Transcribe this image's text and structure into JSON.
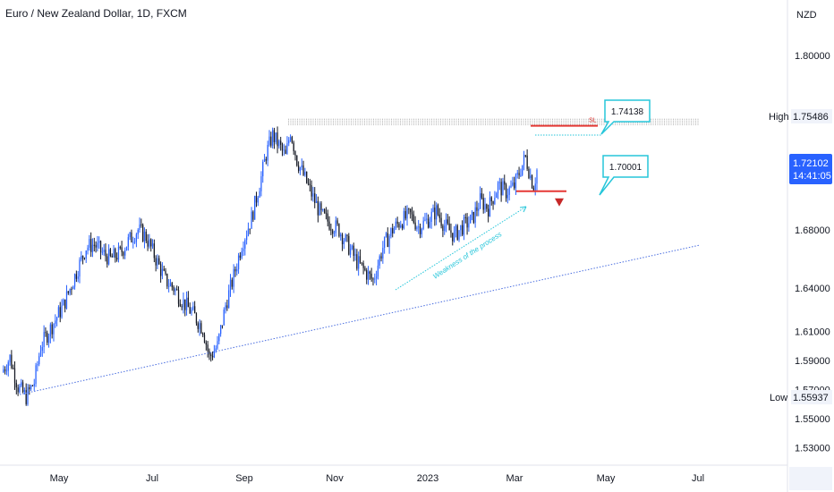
{
  "header": {
    "title": "Euro / New Zealand Dollar, 1D, FXCM"
  },
  "chart_data": {
    "type": "candlestick",
    "currency": "NZD",
    "y_ticks": [
      "1.80000",
      "1.68000",
      "1.64000",
      "1.61000",
      "1.59000",
      "1.57000",
      "1.55000",
      "1.53000"
    ],
    "y_tick_values": [
      1.8,
      1.68,
      1.64,
      1.61,
      1.59,
      1.57,
      1.55,
      1.53
    ],
    "ylim": [
      1.518,
      1.835
    ],
    "x_ticks": [
      "May",
      "Jul",
      "Sep",
      "Nov",
      "2023",
      "Mar",
      "May",
      "Jul"
    ],
    "price_path": [
      [
        0,
        1.582
      ],
      [
        5,
        1.592
      ],
      [
        10,
        1.572
      ],
      [
        15,
        1.565
      ],
      [
        20,
        1.575
      ],
      [
        24,
        1.6
      ],
      [
        30,
        1.612
      ],
      [
        38,
        1.628
      ],
      [
        45,
        1.648
      ],
      [
        52,
        1.668
      ],
      [
        57,
        1.67
      ],
      [
        62,
        1.664
      ],
      [
        67,
        1.66
      ],
      [
        73,
        1.664
      ],
      [
        78,
        1.672
      ],
      [
        84,
        1.68
      ],
      [
        89,
        1.675
      ],
      [
        95,
        1.66
      ],
      [
        101,
        1.645
      ],
      [
        106,
        1.64
      ],
      [
        112,
        1.63
      ],
      [
        118,
        1.622
      ],
      [
        124,
        1.612
      ],
      [
        128,
        1.592
      ],
      [
        133,
        1.6
      ],
      [
        138,
        1.628
      ],
      [
        143,
        1.648
      ],
      [
        148,
        1.67
      ],
      [
        154,
        1.688
      ],
      [
        160,
        1.716
      ],
      [
        163,
        1.732
      ],
      [
        167,
        1.745
      ],
      [
        171,
        1.738
      ],
      [
        175,
        1.73
      ],
      [
        178,
        1.748
      ],
      [
        182,
        1.728
      ],
      [
        187,
        1.715
      ],
      [
        192,
        1.702
      ],
      [
        197,
        1.69
      ],
      [
        203,
        1.684
      ],
      [
        208,
        1.68
      ],
      [
        214,
        1.668
      ],
      [
        219,
        1.658
      ],
      [
        225,
        1.65
      ],
      [
        229,
        1.645
      ],
      [
        235,
        1.668
      ],
      [
        241,
        1.68
      ],
      [
        246,
        1.686
      ],
      [
        252,
        1.69
      ],
      [
        257,
        1.682
      ],
      [
        262,
        1.686
      ],
      [
        268,
        1.693
      ],
      [
        273,
        1.683
      ],
      [
        279,
        1.676
      ],
      [
        284,
        1.682
      ],
      [
        290,
        1.687
      ],
      [
        295,
        1.7
      ],
      [
        300,
        1.695
      ],
      [
        306,
        1.71
      ],
      [
        311,
        1.706
      ],
      [
        316,
        1.71
      ],
      [
        320,
        1.722
      ],
      [
        323,
        1.73
      ],
      [
        326,
        1.717
      ],
      [
        328,
        1.71
      ],
      [
        330,
        1.721
      ]
    ],
    "markers": {
      "high": "1.75486",
      "low": "1.55937",
      "last": "1.72102",
      "countdown": "14:41:05"
    },
    "labels": {
      "high_tag": "High",
      "low_tag": "Low"
    },
    "annotations": {
      "sl_label": "SL",
      "sl_level": 1.7515,
      "callout_upper": "1.74138",
      "callout_lower": "1.70001",
      "support_level": 1.7065,
      "weakness_label": "Weakness of the process"
    },
    "colors": {
      "up": "#2962ff",
      "down": "#131722",
      "sl": "#e53935",
      "accent": "#26c6da",
      "trend": "#4a6ee0",
      "last": "#2962ff"
    }
  }
}
